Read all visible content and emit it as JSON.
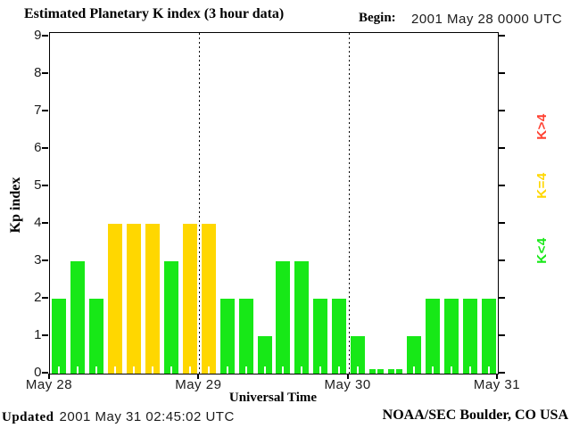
{
  "header": {
    "title": "Estimated Planetary K index (3 hour data)",
    "begin_label": "Begin:",
    "begin_value": "2001 May 28 0000 UTC"
  },
  "footer": {
    "updated_label": "Updated",
    "updated_value": "2001 May 31 02:45:02 UTC",
    "credit": "NOAA/SEC Boulder, CO USA"
  },
  "colors": {
    "green": "#17e817",
    "yellow": "#ffd700",
    "red": "#ff4031",
    "axis": "#000000",
    "tick_text": "#1c1c1c",
    "background": "#ffffff"
  },
  "legend": [
    {
      "label": "K>4",
      "color": "#ff4031",
      "meaning": "Kp greater than 4"
    },
    {
      "label": "K=4",
      "color": "#ffd700",
      "meaning": "Kp equal to 4"
    },
    {
      "label": "K<4",
      "color": "#17e817",
      "meaning": "Kp less than 4"
    }
  ],
  "chart_data": {
    "type": "bar",
    "title": "Estimated Planetary K index (3 hour data)",
    "xlabel": "Universal Time",
    "ylabel": "Kp index",
    "ylim": [
      0,
      9
    ],
    "yticks": [
      0,
      1,
      2,
      3,
      4,
      5,
      6,
      7,
      8,
      9
    ],
    "day_labels": [
      "May 28",
      "May 29",
      "May 30",
      "May 31"
    ],
    "bars_per_day": 8,
    "hours_per_bar": 3,
    "values": [
      2,
      3,
      2,
      4,
      4,
      4,
      3,
      4,
      4,
      2,
      2,
      1,
      3,
      3,
      2,
      2,
      1,
      0,
      0,
      1,
      2,
      2,
      2,
      2
    ],
    "series": [
      {
        "name": "May 28",
        "values": [
          2,
          3,
          2,
          4,
          4,
          4,
          3,
          4
        ]
      },
      {
        "name": "May 29",
        "values": [
          4,
          2,
          2,
          1,
          3,
          3,
          2,
          2
        ]
      },
      {
        "name": "May 30",
        "values": [
          1,
          0,
          0,
          1,
          2,
          2,
          2,
          2
        ]
      }
    ],
    "color_rule": {
      "below_4": "#17e817",
      "equal_4": "#ffd700",
      "above_4": "#ff4031"
    },
    "grid": "dotted vertical lines at day boundaries",
    "legend_position": "right-rotated"
  }
}
